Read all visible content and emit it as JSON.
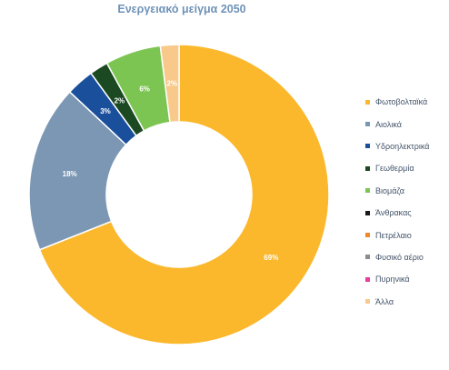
{
  "chart_data": {
    "type": "pie",
    "title": "Ενεργειακό μείγμα 2050",
    "legend_position": "right",
    "categories": [
      "Φωτοβολταϊκά",
      "Αιολικά",
      "Υδροηλεκτρικά",
      "Γεωθερμία",
      "Βιομάζα",
      "Άνθρακας",
      "Πετρέλαιο",
      "Φυσικό αέριο",
      "Πυρηνικά",
      "Άλλα"
    ],
    "values": [
      69,
      18,
      3,
      2,
      6,
      0,
      0,
      0,
      0,
      2
    ],
    "data_labels": [
      "69%",
      "18%",
      "3%",
      "2%",
      "6%",
      "",
      "",
      "",
      "",
      "2%"
    ],
    "colors": [
      "#fbb82c",
      "#7b97b4",
      "#1a4f9c",
      "#1b4a22",
      "#7dc553",
      "#1a1a1a",
      "#ee8a2a",
      "#8c8c8c",
      "#e63fa0",
      "#f9c98c"
    ]
  }
}
